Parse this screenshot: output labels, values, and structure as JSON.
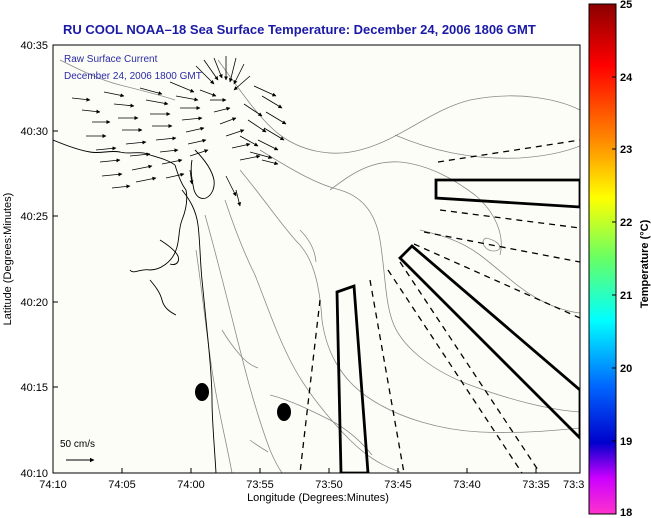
{
  "title": "RU COOL  NOAA–18  Sea Surface Temperature:  December 24, 2006 1806 GMT",
  "legend": {
    "line1": "Raw Surface Current",
    "line2": "December 24, 2006 1800 GMT"
  },
  "x_axis": {
    "label": "Longitude (Degrees:Minutes)",
    "ticks": [
      "74:10",
      "74:05",
      "74:00",
      "73:55",
      "73:50",
      "73:45",
      "73:40",
      "73:35",
      "73:3"
    ]
  },
  "y_axis": {
    "label": "Latitude (Degrees:Minutes)",
    "ticks": [
      "40:35",
      "40:30",
      "40:25",
      "40:20",
      "40:15",
      "40:10"
    ]
  },
  "colorbar": {
    "label": "Temperature (°C)",
    "ticks": [
      "25",
      "24",
      "23",
      "22",
      "21",
      "20",
      "19",
      "18"
    ],
    "colors": [
      "#8b0000",
      "#ff0000",
      "#ff8c00",
      "#ffff00",
      "#66ff66",
      "#00ffff",
      "#0066ff",
      "#0000cc",
      "#cc00ff",
      "#ff33cc"
    ]
  },
  "scale_arrow": {
    "label": "50 cm/s"
  },
  "colors": {
    "title": "#1a1aa6",
    "plot_background": "#fdfdf8",
    "contour": "#8a8a8a"
  }
}
